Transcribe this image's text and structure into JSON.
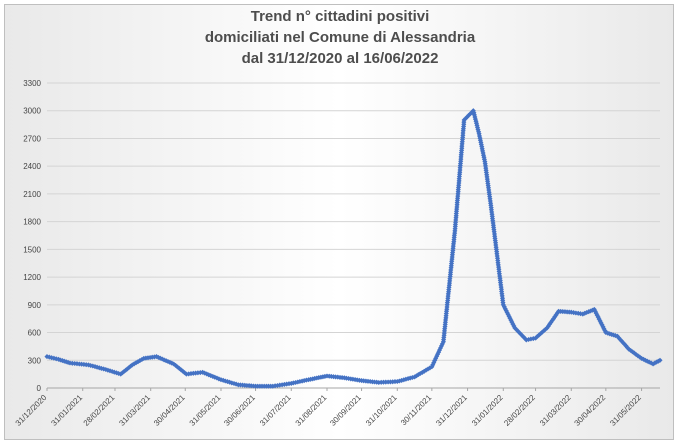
{
  "chart_data": {
    "type": "line",
    "title": [
      "Trend n° cittadini positivi",
      "domiciliati nel Comune di Alessandria",
      "dal 31/12/2020 al 16/06/2022"
    ],
    "xlabel": "",
    "ylabel": "",
    "ylim": [
      0,
      3300
    ],
    "yticks": [
      0,
      300,
      600,
      900,
      1200,
      1500,
      1800,
      2100,
      2400,
      2700,
      3000,
      3300
    ],
    "xticks": [
      "31/12/2020",
      "31/01/2021",
      "28/02/2021",
      "31/03/2021",
      "30/04/2021",
      "31/05/2021",
      "30/06/2021",
      "31/07/2021",
      "31/08/2021",
      "30/09/2021",
      "31/10/2021",
      "30/11/2021",
      "31/12/2021",
      "31/01/2022",
      "28/02/2022",
      "31/03/2022",
      "30/04/2022",
      "31/05/2022"
    ],
    "grid": "horizontal",
    "legend": "none",
    "color": "#4472c4",
    "series": [
      {
        "x": [
          "2020-12-31",
          "2021-01-10",
          "2021-01-20",
          "2021-02-05",
          "2021-02-20",
          "2021-03-05",
          "2021-03-15",
          "2021-03-25",
          "2021-04-05",
          "2021-04-20",
          "2021-05-01",
          "2021-05-15",
          "2021-05-31",
          "2021-06-15",
          "2021-06-30",
          "2021-07-15",
          "2021-07-31",
          "2021-08-15",
          "2021-08-31",
          "2021-09-15",
          "2021-09-30",
          "2021-10-15",
          "2021-10-31",
          "2021-11-15",
          "2021-11-30",
          "2021-12-10",
          "2021-12-20",
          "2021-12-28",
          "2022-01-05",
          "2022-01-10",
          "2022-01-15",
          "2022-01-20",
          "2022-01-25",
          "2022-01-31",
          "2022-02-10",
          "2022-02-20",
          "2022-02-28",
          "2022-03-10",
          "2022-03-20",
          "2022-03-31",
          "2022-04-10",
          "2022-04-20",
          "2022-04-30",
          "2022-05-10",
          "2022-05-20",
          "2022-05-31",
          "2022-06-10",
          "2022-06-16"
        ],
        "values": [
          340,
          310,
          270,
          250,
          200,
          150,
          250,
          320,
          340,
          260,
          150,
          170,
          90,
          35,
          20,
          20,
          50,
          90,
          130,
          110,
          80,
          60,
          70,
          120,
          230,
          500,
          1700,
          2900,
          3000,
          2750,
          2450,
          2000,
          1500,
          900,
          650,
          520,
          540,
          650,
          830,
          820,
          800,
          850,
          600,
          560,
          420,
          320,
          260,
          300
        ]
      }
    ]
  }
}
